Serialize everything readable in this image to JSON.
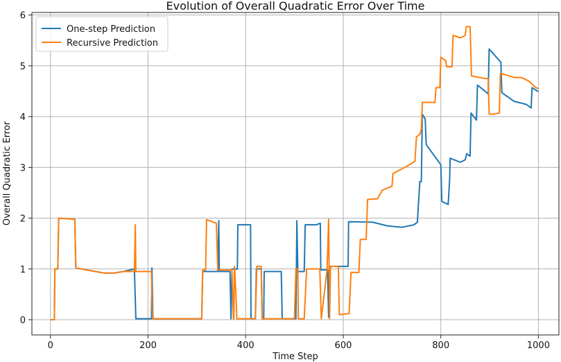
{
  "chart_data": {
    "type": "line",
    "title": "Evolution of Overall Quadratic Error Over Time",
    "xlabel": "Time Step",
    "ylabel": "Overall Quadratic Error",
    "xlim": [
      -38,
      1042
    ],
    "ylim": [
      -0.3,
      6.05
    ],
    "xticks": [
      0,
      200,
      400,
      600,
      800,
      1000
    ],
    "yticks": [
      0,
      1,
      2,
      3,
      4,
      5,
      6
    ],
    "grid": true,
    "legend": "top-left",
    "series": [
      {
        "name": "One-step Prediction",
        "color": "#1f77b4",
        "points": [
          [
            0,
            0
          ],
          [
            8,
            0
          ],
          [
            9,
            1
          ],
          [
            15,
            1
          ],
          [
            17,
            2
          ],
          [
            50,
            1.98
          ],
          [
            52,
            1.02
          ],
          [
            80,
            0.97
          ],
          [
            110,
            0.92
          ],
          [
            130,
            0.92
          ],
          [
            150,
            0.95
          ],
          [
            172,
            1.0
          ],
          [
            175,
            0.02
          ],
          [
            207,
            0.02
          ],
          [
            208,
            1.02
          ],
          [
            210,
            0.02
          ],
          [
            270,
            0.02
          ],
          [
            310,
            0.02
          ],
          [
            312,
            0.95
          ],
          [
            343,
            0.95
          ],
          [
            345,
            1.95
          ],
          [
            346,
            0.95
          ],
          [
            368,
            0.95
          ],
          [
            370,
            0.02
          ],
          [
            372,
            1.0
          ],
          [
            383,
            1.0
          ],
          [
            384,
            1.87
          ],
          [
            410,
            1.87
          ],
          [
            411,
            0.02
          ],
          [
            420,
            0.02
          ],
          [
            422,
            1.0
          ],
          [
            432,
            1.0
          ],
          [
            434,
            0.02
          ],
          [
            437,
            0.02
          ],
          [
            438,
            0.95
          ],
          [
            473,
            0.95
          ],
          [
            475,
            0.02
          ],
          [
            503,
            0.02
          ],
          [
            505,
            1.95
          ],
          [
            507,
            0.95
          ],
          [
            520,
            0.95
          ],
          [
            522,
            1.87
          ],
          [
            545,
            1.87
          ],
          [
            553,
            1.9
          ],
          [
            554,
            0.98
          ],
          [
            568,
            0.98
          ],
          [
            570,
            0.05
          ],
          [
            571,
            1.05
          ],
          [
            610,
            1.05
          ],
          [
            611,
            1.93
          ],
          [
            660,
            1.92
          ],
          [
            690,
            1.85
          ],
          [
            720,
            1.82
          ],
          [
            745,
            1.87
          ],
          [
            752,
            1.92
          ],
          [
            754,
            2.25
          ],
          [
            757,
            2.72
          ],
          [
            760,
            2.72
          ],
          [
            762,
            4.05
          ],
          [
            768,
            3.95
          ],
          [
            770,
            3.45
          ],
          [
            800,
            3.05
          ],
          [
            802,
            2.33
          ],
          [
            815,
            2.27
          ],
          [
            818,
            2.75
          ],
          [
            819,
            3.18
          ],
          [
            840,
            3.1
          ],
          [
            850,
            3.15
          ],
          [
            853,
            3.27
          ],
          [
            860,
            3.22
          ],
          [
            862,
            4.07
          ],
          [
            873,
            3.93
          ],
          [
            875,
            4.62
          ],
          [
            897,
            4.45
          ],
          [
            899,
            5.33
          ],
          [
            923,
            5.07
          ],
          [
            925,
            4.47
          ],
          [
            950,
            4.3
          ],
          [
            975,
            4.24
          ],
          [
            985,
            4.17
          ],
          [
            987,
            4.57
          ],
          [
            1000,
            4.49
          ]
        ]
      },
      {
        "name": "Recursive Prediction",
        "color": "#ff7f0e",
        "points": [
          [
            0,
            0
          ],
          [
            8,
            0
          ],
          [
            9,
            1
          ],
          [
            15,
            1
          ],
          [
            17,
            2
          ],
          [
            50,
            1.98
          ],
          [
            52,
            1.02
          ],
          [
            80,
            0.97
          ],
          [
            110,
            0.92
          ],
          [
            130,
            0.92
          ],
          [
            150,
            0.95
          ],
          [
            172,
            0.95
          ],
          [
            174,
            1.87
          ],
          [
            175,
            0.95
          ],
          [
            207,
            0.95
          ],
          [
            209,
            0.02
          ],
          [
            270,
            0.02
          ],
          [
            310,
            0.02
          ],
          [
            312,
            0.98
          ],
          [
            318,
            0.98
          ],
          [
            320,
            1.97
          ],
          [
            340,
            1.9
          ],
          [
            343,
            0.98
          ],
          [
            372,
            0.98
          ],
          [
            375,
            0.02
          ],
          [
            376,
            0.02
          ],
          [
            377,
            1.05
          ],
          [
            378,
            0.95
          ],
          [
            382,
            0.02
          ],
          [
            420,
            0.02
          ],
          [
            423,
            1.05
          ],
          [
            432,
            1.05
          ],
          [
            434,
            0.02
          ],
          [
            500,
            0.02
          ],
          [
            503,
            1.0
          ],
          [
            507,
            1.0
          ],
          [
            508,
            0.02
          ],
          [
            520,
            0.02
          ],
          [
            525,
            1.0
          ],
          [
            552,
            1.0
          ],
          [
            555,
            0.02
          ],
          [
            567,
            0.98
          ],
          [
            570,
            1.98
          ],
          [
            572,
            0.02
          ],
          [
            574,
            1.05
          ],
          [
            590,
            1.05
          ],
          [
            592,
            0.1
          ],
          [
            612,
            0.12
          ],
          [
            616,
            0.93
          ],
          [
            632,
            0.93
          ],
          [
            635,
            1.58
          ],
          [
            647,
            1.58
          ],
          [
            650,
            2.37
          ],
          [
            670,
            2.38
          ],
          [
            680,
            2.55
          ],
          [
            700,
            2.63
          ],
          [
            702,
            2.88
          ],
          [
            730,
            3.02
          ],
          [
            747,
            3.12
          ],
          [
            750,
            3.6
          ],
          [
            757,
            3.65
          ],
          [
            760,
            3.75
          ],
          [
            762,
            4.28
          ],
          [
            788,
            4.28
          ],
          [
            790,
            4.57
          ],
          [
            798,
            4.57
          ],
          [
            800,
            5.17
          ],
          [
            810,
            5.1
          ],
          [
            812,
            4.98
          ],
          [
            823,
            4.98
          ],
          [
            825,
            5.6
          ],
          [
            840,
            5.55
          ],
          [
            850,
            5.6
          ],
          [
            852,
            5.77
          ],
          [
            860,
            5.77
          ],
          [
            863,
            4.8
          ],
          [
            890,
            4.75
          ],
          [
            897,
            4.75
          ],
          [
            899,
            4.05
          ],
          [
            908,
            4.05
          ],
          [
            920,
            4.07
          ],
          [
            922,
            4.85
          ],
          [
            930,
            4.83
          ],
          [
            950,
            4.77
          ],
          [
            965,
            4.77
          ],
          [
            980,
            4.7
          ],
          [
            995,
            4.57
          ],
          [
            1000,
            4.55
          ]
        ]
      }
    ]
  }
}
